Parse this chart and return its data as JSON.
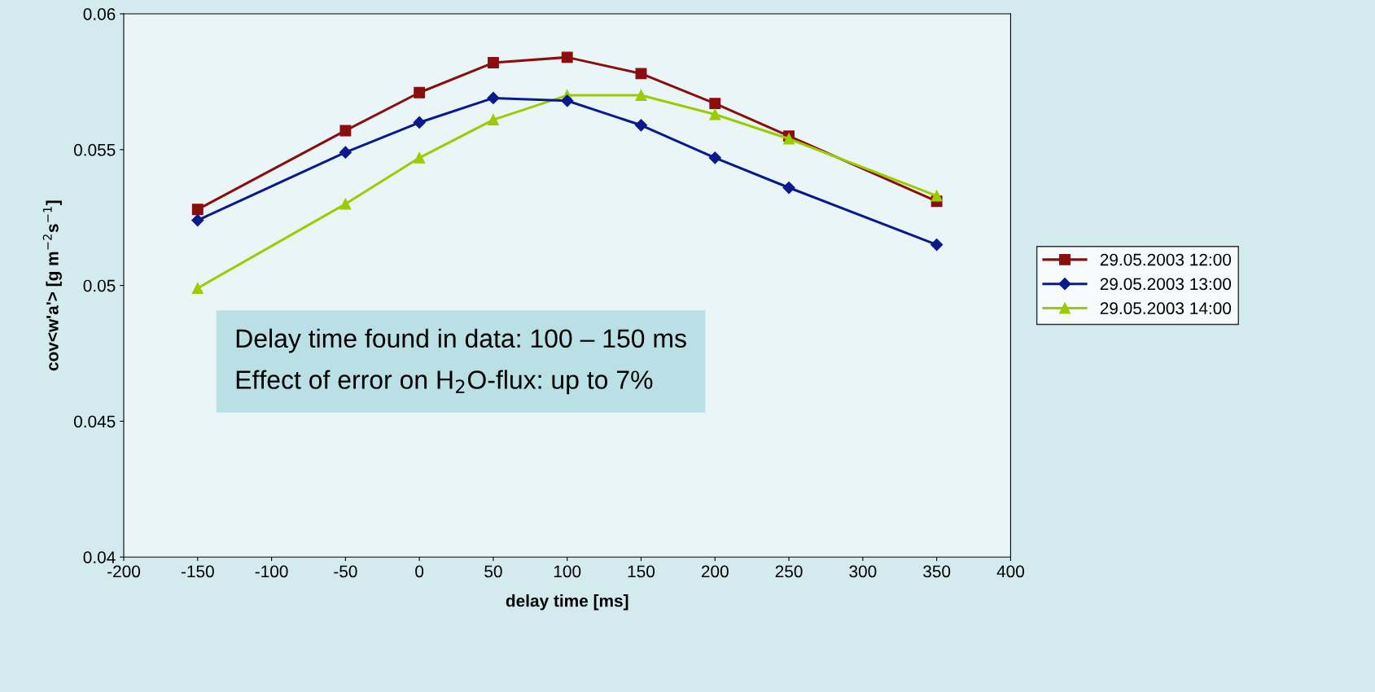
{
  "chart_data": {
    "type": "line",
    "xlabel": "delay time [ms]",
    "ylabel": "cov<w'a'> [g m$^{−2}$s$^{−1}$]",
    "x": [
      -150,
      -50,
      0,
      50,
      100,
      150,
      200,
      250,
      350
    ],
    "series": [
      {
        "name": "29.05.2003 12:00",
        "color": "#8b0e0e",
        "marker": "square",
        "values": [
          0.0528,
          0.0557,
          0.0571,
          0.0582,
          0.0584,
          0.0578,
          0.0567,
          0.0555,
          0.0531
        ]
      },
      {
        "name": "29.05.2003 13:00",
        "color": "#0a1a8c",
        "marker": "diamond",
        "values": [
          0.0524,
          0.0549,
          0.056,
          0.0569,
          0.0568,
          0.0559,
          0.0547,
          0.0536,
          0.0515
        ]
      },
      {
        "name": "29.05.2003 14:00",
        "color": "#9acd00",
        "marker": "triangle",
        "values": [
          0.0499,
          0.053,
          0.0547,
          0.0561,
          0.057,
          0.057,
          0.0563,
          0.0554,
          0.0533
        ]
      }
    ],
    "xlim": [
      -200,
      400
    ],
    "xticks": [
      -200,
      -150,
      -100,
      -50,
      0,
      50,
      100,
      150,
      200,
      250,
      300,
      350,
      400
    ],
    "ylim": [
      0.04,
      0.06
    ],
    "yticks": [
      0.04,
      0.045,
      0.05,
      0.055,
      0.06
    ],
    "annotations": [
      "Delay time found in data: 100 – 150 ms\nEffect of error on H$_{2}$O-flux: up to 7%"
    ],
    "legend": "right",
    "grid": false,
    "line_style": "solid"
  }
}
